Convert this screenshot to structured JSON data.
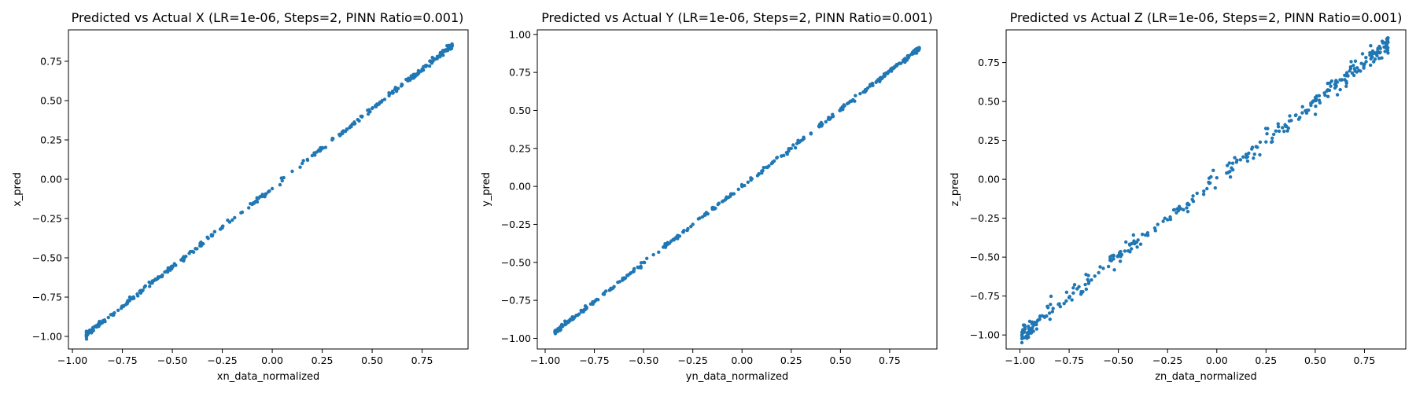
{
  "figure": {
    "background": "#ffffff",
    "marker_color": "#1f77b4"
  },
  "chart_data": [
    {
      "type": "scatter",
      "title": "Predicted vs Actual X (LR=1e-06, Steps=2, PINN Ratio=0.001)",
      "xlabel": "xn_data_normalized",
      "ylabel": "x_pred",
      "xlim": [
        -1.02,
        0.98
      ],
      "ylim": [
        -1.08,
        0.95
      ],
      "xticks": [
        -1.0,
        -0.75,
        -0.5,
        -0.25,
        0.0,
        0.25,
        0.5,
        0.75
      ],
      "xtick_labels": [
        "−1.00",
        "−0.75",
        "−0.50",
        "−0.25",
        "0.00",
        "0.25",
        "0.50",
        "0.75"
      ],
      "yticks": [
        -1.0,
        -0.75,
        -0.5,
        -0.25,
        0.0,
        0.25,
        0.5,
        0.75
      ],
      "ytick_labels": [
        "−1.00",
        "−0.75",
        "−0.50",
        "−0.25",
        "0.00",
        "0.25",
        "0.50",
        "0.75"
      ],
      "grid": false,
      "color": "#1f77b4",
      "fit": {
        "x_min": -0.93,
        "x_max": 0.9,
        "slope": 1.006,
        "intercept": -0.054,
        "noise": 0.008
      },
      "series": [
        {
          "points": [
            [
              -0.93,
              -0.99
            ],
            [
              -0.91,
              -0.97
            ],
            [
              -0.88,
              -0.94
            ],
            [
              -0.86,
              -0.92
            ],
            [
              -0.82,
              -0.88
            ],
            [
              -0.79,
              -0.85
            ],
            [
              -0.75,
              -0.81
            ],
            [
              -0.7,
              -0.76
            ],
            [
              -0.65,
              -0.71
            ],
            [
              -0.6,
              -0.66
            ],
            [
              -0.55,
              -0.61
            ],
            [
              -0.5,
              -0.56
            ],
            [
              -0.45,
              -0.51
            ],
            [
              -0.4,
              -0.46
            ],
            [
              -0.35,
              -0.41
            ],
            [
              -0.3,
              -0.36
            ],
            [
              -0.25,
              -0.31
            ],
            [
              -0.2,
              -0.26
            ],
            [
              -0.15,
              -0.21
            ],
            [
              -0.1,
              -0.16
            ],
            [
              -0.05,
              -0.11
            ],
            [
              0.0,
              -0.06
            ],
            [
              0.05,
              -0.01
            ],
            [
              0.1,
              0.05
            ],
            [
              0.15,
              0.1
            ],
            [
              0.2,
              0.15
            ],
            [
              0.25,
              0.2
            ],
            [
              0.3,
              0.25
            ],
            [
              0.35,
              0.3
            ],
            [
              0.4,
              0.35
            ],
            [
              0.45,
              0.4
            ],
            [
              0.5,
              0.45
            ],
            [
              0.55,
              0.5
            ],
            [
              0.6,
              0.55
            ],
            [
              0.65,
              0.6
            ],
            [
              0.7,
              0.65
            ],
            [
              0.75,
              0.7
            ],
            [
              0.8,
              0.75
            ],
            [
              0.85,
              0.8
            ],
            [
              0.88,
              0.83
            ],
            [
              0.9,
              0.86
            ]
          ]
        }
      ]
    },
    {
      "type": "scatter",
      "title": "Predicted vs Actual Y (LR=1e-06, Steps=2, PINN Ratio=0.001)",
      "xlabel": "yn_data_normalized",
      "ylabel": "y_pred",
      "xlim": [
        -1.04,
        0.99
      ],
      "ylim": [
        -1.07,
        1.03
      ],
      "xticks": [
        -1.0,
        -0.75,
        -0.5,
        -0.25,
        0.0,
        0.25,
        0.5,
        0.75
      ],
      "xtick_labels": [
        "−1.00",
        "−0.75",
        "−0.50",
        "−0.25",
        "0.00",
        "0.25",
        "0.50",
        "0.75"
      ],
      "yticks": [
        -1.0,
        -0.75,
        -0.5,
        -0.25,
        0.0,
        0.25,
        0.5,
        0.75,
        1.0
      ],
      "ytick_labels": [
        "−1.00",
        "−0.75",
        "−0.50",
        "−0.25",
        "0.00",
        "0.25",
        "0.50",
        "0.75",
        "1.00"
      ],
      "grid": false,
      "color": "#1f77b4",
      "fit": {
        "x_min": -0.95,
        "x_max": 0.9,
        "slope": 1.01,
        "intercept": 0.0,
        "noise": 0.007
      },
      "series": [
        {
          "points": [
            [
              -0.95,
              -0.96
            ],
            [
              -0.9,
              -0.91
            ],
            [
              -0.85,
              -0.86
            ],
            [
              -0.8,
              -0.81
            ],
            [
              -0.75,
              -0.76
            ],
            [
              -0.7,
              -0.71
            ],
            [
              -0.65,
              -0.66
            ],
            [
              -0.6,
              -0.61
            ],
            [
              -0.55,
              -0.56
            ],
            [
              -0.5,
              -0.5
            ],
            [
              -0.45,
              -0.45
            ],
            [
              -0.4,
              -0.4
            ],
            [
              -0.35,
              -0.35
            ],
            [
              -0.3,
              -0.3
            ],
            [
              -0.25,
              -0.25
            ],
            [
              -0.2,
              -0.2
            ],
            [
              -0.15,
              -0.15
            ],
            [
              -0.1,
              -0.1
            ],
            [
              -0.05,
              -0.05
            ],
            [
              0.0,
              0.0
            ],
            [
              0.05,
              0.05
            ],
            [
              0.1,
              0.1
            ],
            [
              0.15,
              0.15
            ],
            [
              0.2,
              0.2
            ],
            [
              0.25,
              0.25
            ],
            [
              0.3,
              0.3
            ],
            [
              0.35,
              0.35
            ],
            [
              0.4,
              0.4
            ],
            [
              0.45,
              0.45
            ],
            [
              0.5,
              0.5
            ],
            [
              0.55,
              0.56
            ],
            [
              0.6,
              0.61
            ],
            [
              0.65,
              0.66
            ],
            [
              0.7,
              0.71
            ],
            [
              0.75,
              0.76
            ],
            [
              0.8,
              0.81
            ],
            [
              0.85,
              0.86
            ],
            [
              0.9,
              0.91
            ]
          ]
        }
      ]
    },
    {
      "type": "scatter",
      "title": "Predicted vs Actual Z (LR=1e-06, Steps=2, PINN Ratio=0.001)",
      "xlabel": "zn_data_normalized",
      "ylabel": "z_pred",
      "xlim": [
        -1.07,
        0.96
      ],
      "ylim": [
        -1.09,
        0.96
      ],
      "xticks": [
        -1.0,
        -0.75,
        -0.5,
        -0.25,
        0.0,
        0.25,
        0.5,
        0.75
      ],
      "xtick_labels": [
        "−1.00",
        "−0.75",
        "−0.50",
        "−0.25",
        "0.00",
        "0.25",
        "0.50",
        "0.75"
      ],
      "yticks": [
        -1.0,
        -0.75,
        -0.5,
        -0.25,
        0.0,
        0.25,
        0.5,
        0.75
      ],
      "ytick_labels": [
        "−1.00",
        "−0.75",
        "−0.50",
        "−0.25",
        "0.00",
        "0.25",
        "0.50",
        "0.75"
      ],
      "grid": false,
      "color": "#1f77b4",
      "fit": {
        "x_min": -0.99,
        "x_max": 0.87,
        "slope": 1.005,
        "intercept": 0.0,
        "noise": 0.03
      },
      "series": [
        {
          "points": [
            [
              -0.99,
              -1.0
            ],
            [
              -0.95,
              -0.96
            ],
            [
              -0.9,
              -0.9
            ],
            [
              -0.85,
              -0.86
            ],
            [
              -0.8,
              -0.8
            ],
            [
              -0.75,
              -0.76
            ],
            [
              -0.7,
              -0.69
            ],
            [
              -0.65,
              -0.66
            ],
            [
              -0.6,
              -0.6
            ],
            [
              -0.55,
              -0.56
            ],
            [
              -0.5,
              -0.49
            ],
            [
              -0.45,
              -0.46
            ],
            [
              -0.4,
              -0.39
            ],
            [
              -0.35,
              -0.36
            ],
            [
              -0.3,
              -0.29
            ],
            [
              -0.25,
              -0.26
            ],
            [
              -0.2,
              -0.19
            ],
            [
              -0.15,
              -0.16
            ],
            [
              -0.1,
              -0.09
            ],
            [
              -0.05,
              -0.06
            ],
            [
              0.0,
              0.01
            ],
            [
              0.05,
              0.04
            ],
            [
              0.1,
              0.11
            ],
            [
              0.15,
              0.14
            ],
            [
              0.2,
              0.21
            ],
            [
              0.25,
              0.24
            ],
            [
              0.3,
              0.31
            ],
            [
              0.35,
              0.34
            ],
            [
              0.4,
              0.41
            ],
            [
              0.45,
              0.44
            ],
            [
              0.5,
              0.51
            ],
            [
              0.55,
              0.54
            ],
            [
              0.6,
              0.61
            ],
            [
              0.65,
              0.64
            ],
            [
              0.7,
              0.71
            ],
            [
              0.75,
              0.74
            ],
            [
              0.8,
              0.81
            ],
            [
              0.85,
              0.85
            ],
            [
              0.87,
              0.88
            ]
          ]
        }
      ]
    }
  ]
}
